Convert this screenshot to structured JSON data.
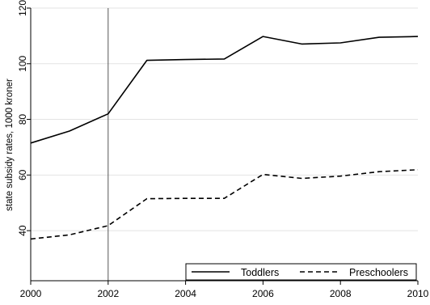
{
  "chart_data": {
    "type": "line",
    "title": "",
    "xlabel": "",
    "ylabel": "state subsidy rates, 1000 kroner",
    "xlim": [
      2000,
      2010
    ],
    "ylim": [
      22,
      120
    ],
    "x_ticks": [
      2000,
      2002,
      2004,
      2006,
      2008,
      2010
    ],
    "y_ticks": [
      40,
      60,
      80,
      100,
      120
    ],
    "grid": "horizontal",
    "vertical_reference_line": 2002,
    "legend_position": "bottom-right",
    "x": [
      2000,
      2001,
      2002,
      2003,
      2004,
      2005,
      2006,
      2007,
      2008,
      2009,
      2010
    ],
    "series": [
      {
        "name": "Toddlers",
        "style": "solid",
        "values": [
          71.5,
          75.8,
          82.0,
          101.2,
          101.5,
          101.7,
          109.8,
          107.1,
          107.5,
          109.5,
          109.8
        ]
      },
      {
        "name": "Preschoolers",
        "style": "dashed",
        "values": [
          37.0,
          38.5,
          41.8,
          51.5,
          51.6,
          51.6,
          60.2,
          58.8,
          59.6,
          61.2,
          61.9
        ]
      }
    ]
  }
}
